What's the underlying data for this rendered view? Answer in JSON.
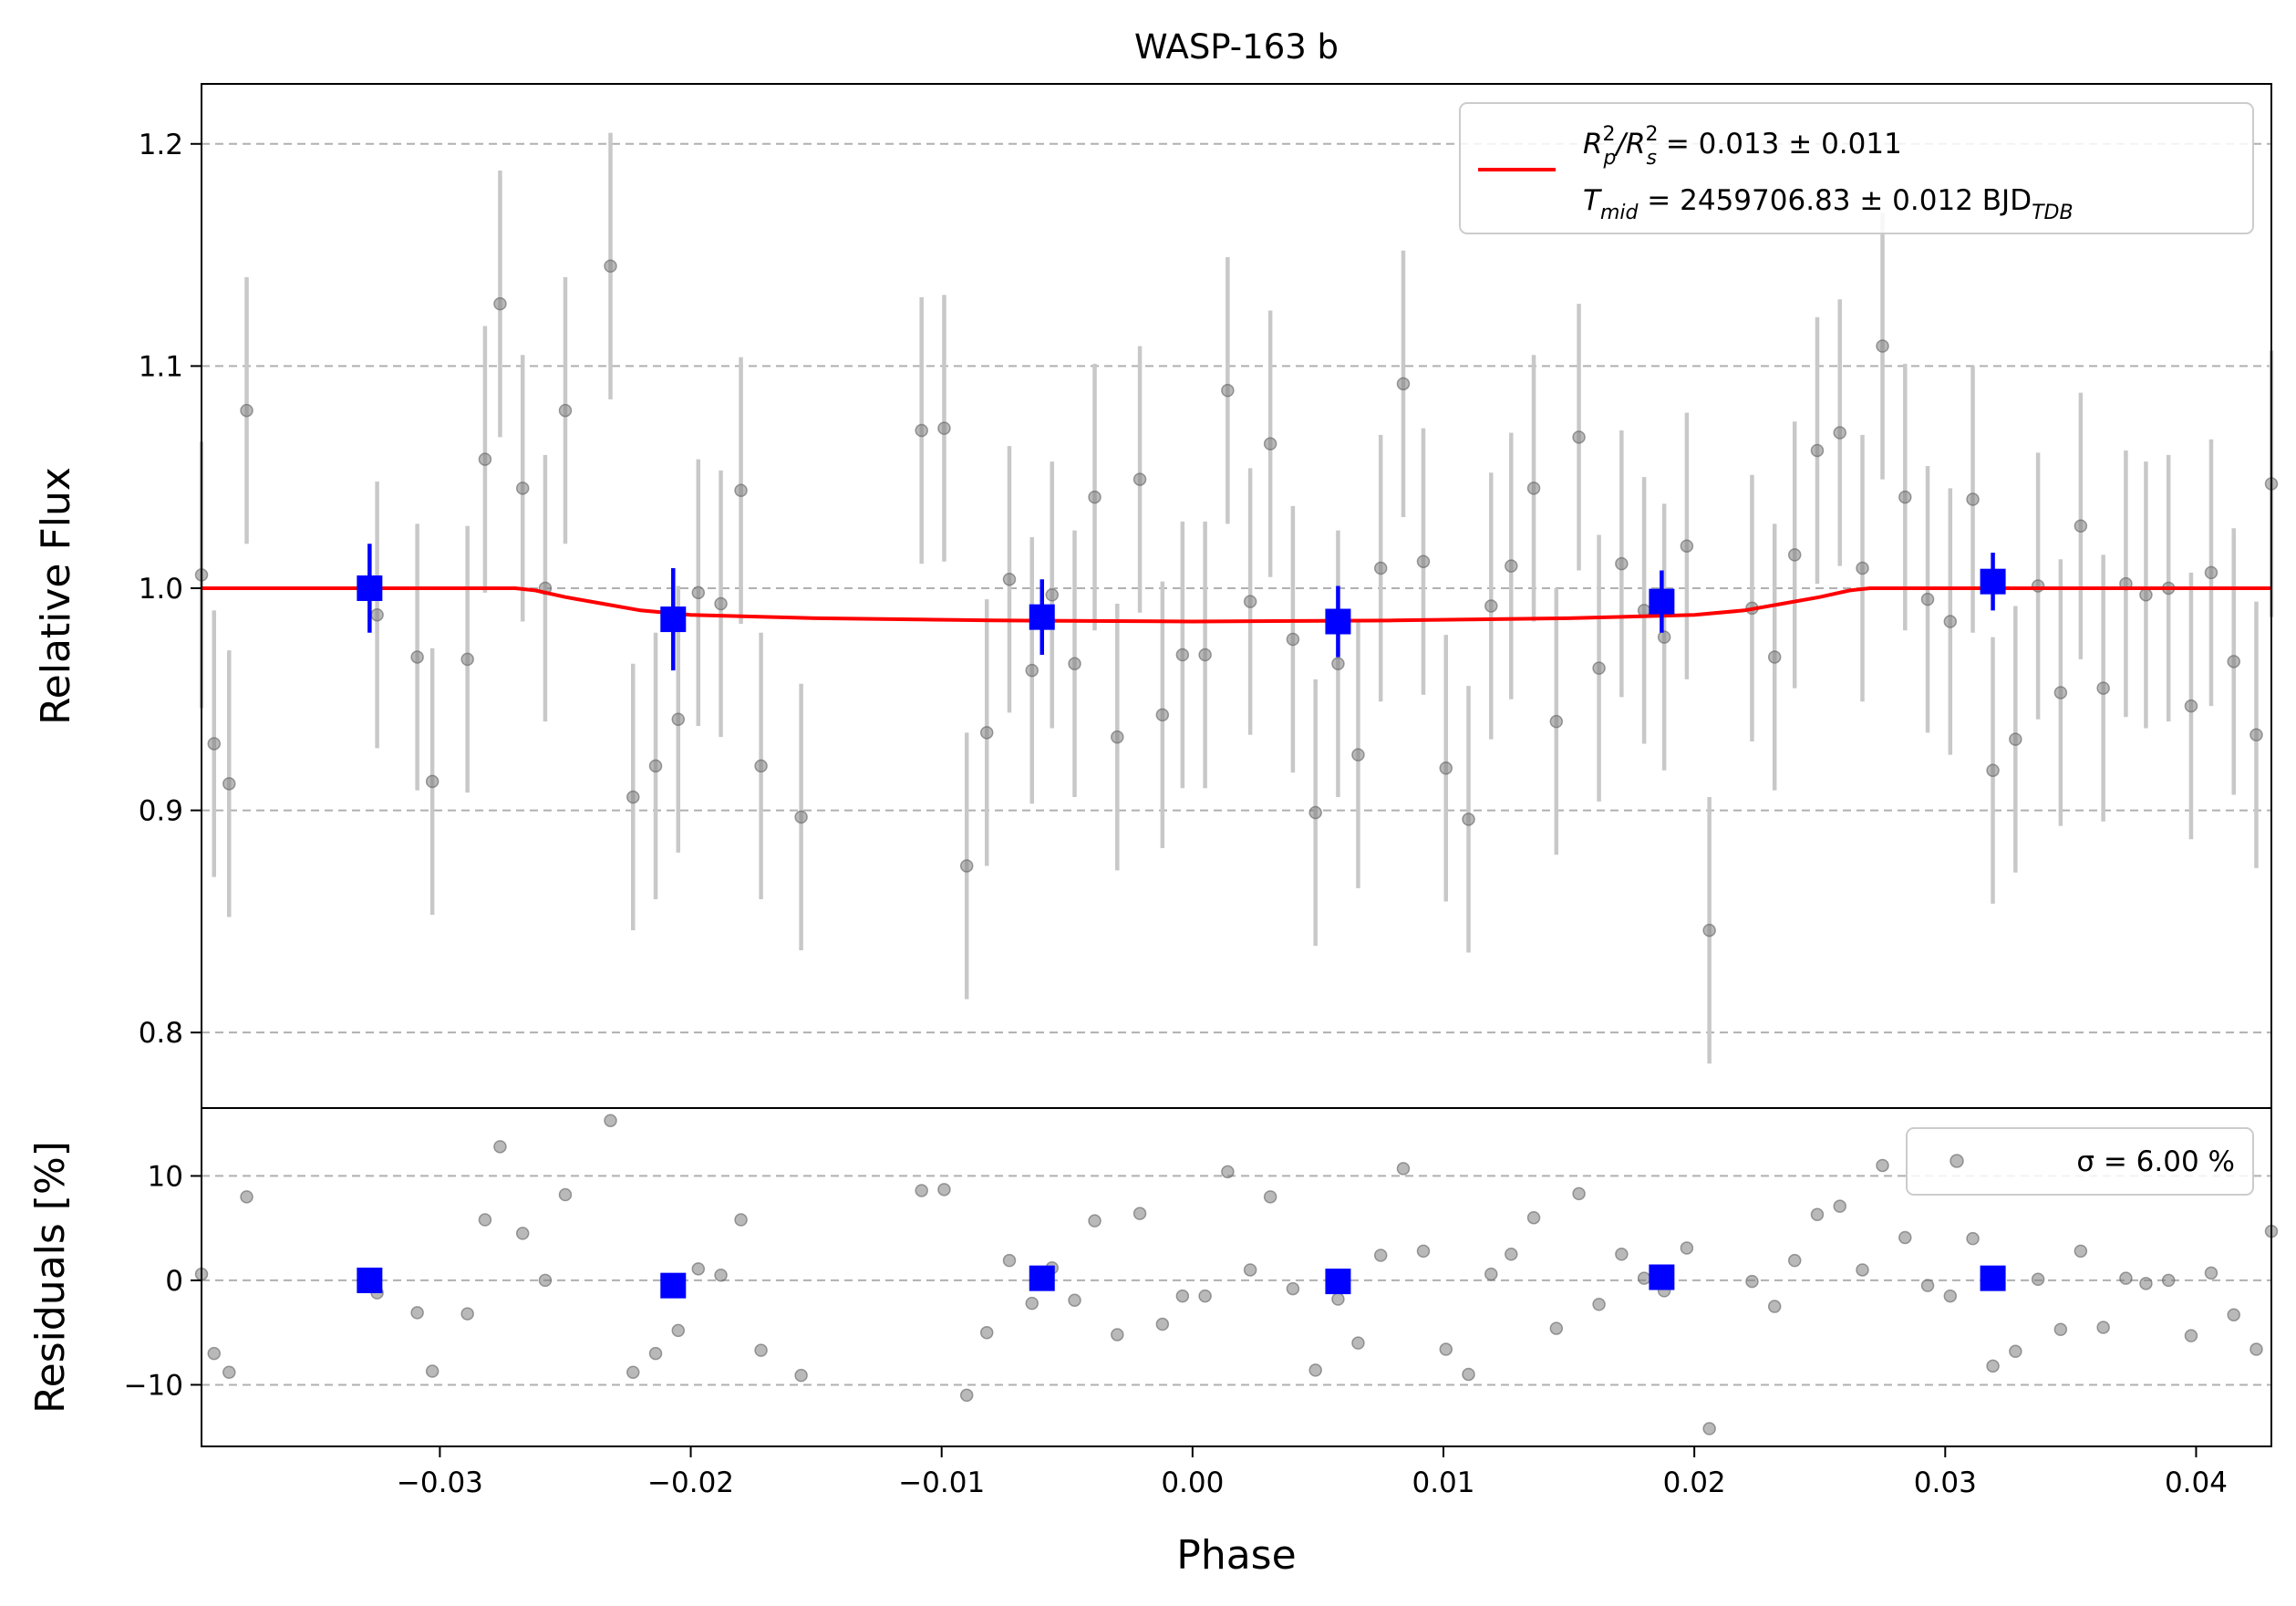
{
  "figure": {
    "title": "WASP-163 b"
  },
  "chart_data": [
    {
      "type": "scatter",
      "panel": "light-curve",
      "title": "WASP-163 b",
      "xlabel": "",
      "ylabel": "Relative Flux",
      "xlim": [
        -0.0395,
        0.043
      ],
      "ylim": [
        0.766,
        1.227
      ],
      "yticks": [
        0.8,
        0.9,
        1.0,
        1.1,
        1.2
      ],
      "ytick_labels": [
        "0.8",
        "0.9",
        "1.0",
        "1.1",
        "1.2"
      ],
      "grid": "horizontal dashed",
      "legend": {
        "placement": "top-right",
        "line1": {
          "pre": "R",
          "sup1": "2",
          "sub1": "p",
          "mid": "/R",
          "sup2": "2",
          "sub2": "s",
          "post": " = 0.013 ± 0.011"
        },
        "line2": {
          "pre": "T",
          "sub1": "mid",
          "mid": " = 2459706.83 ± 0.012 BJD",
          "sub2": "TDB"
        }
      },
      "colors": {
        "data": "#808080",
        "errorbar": "#c8c8c8",
        "binned": "#0000ff",
        "model": "#ff0000",
        "grid": "#b0b0b0"
      },
      "series": [
        {
          "kind": "raw",
          "points": [
            [
              -0.0395,
              1.006,
              0.06
            ],
            [
              -0.039,
              0.93,
              0.06
            ],
            [
              -0.0384,
              0.912,
              0.06
            ],
            [
              -0.0377,
              1.08,
              0.06
            ],
            [
              -0.0325,
              0.988,
              0.06
            ],
            [
              -0.0309,
              0.969,
              0.06
            ],
            [
              -0.0303,
              0.913,
              0.06
            ],
            [
              -0.0289,
              0.968,
              0.06
            ],
            [
              -0.0282,
              1.058,
              0.06
            ],
            [
              -0.0276,
              1.128,
              0.06
            ],
            [
              -0.0267,
              1.045,
              0.06
            ],
            [
              -0.0258,
              1.0,
              0.06
            ],
            [
              -0.025,
              1.08,
              0.06
            ],
            [
              -0.0232,
              1.145,
              0.06
            ],
            [
              -0.0223,
              0.906,
              0.06
            ],
            [
              -0.0214,
              0.92,
              0.06
            ],
            [
              -0.0205,
              0.941,
              0.06
            ],
            [
              -0.0197,
              0.998,
              0.06
            ],
            [
              -0.0188,
              0.993,
              0.06
            ],
            [
              -0.018,
              1.044,
              0.06
            ],
            [
              -0.0172,
              0.92,
              0.06
            ],
            [
              -0.0156,
              0.897,
              0.06
            ],
            [
              -0.0108,
              1.071,
              0.06
            ],
            [
              -0.0099,
              1.072,
              0.06
            ],
            [
              -0.009,
              0.875,
              0.06
            ],
            [
              -0.0082,
              0.935,
              0.06
            ],
            [
              -0.0073,
              1.004,
              0.06
            ],
            [
              -0.0064,
              0.963,
              0.06
            ],
            [
              -0.0056,
              0.997,
              0.06
            ],
            [
              -0.0047,
              0.966,
              0.06
            ],
            [
              -0.0039,
              1.041,
              0.06
            ],
            [
              -0.003,
              0.933,
              0.06
            ],
            [
              -0.0021,
              1.049,
              0.06
            ],
            [
              -0.0012,
              0.943,
              0.06
            ],
            [
              -0.0004,
              0.97,
              0.06
            ],
            [
              0.0005,
              0.97,
              0.06
            ],
            [
              0.0014,
              1.089,
              0.06
            ],
            [
              0.0023,
              0.994,
              0.06
            ],
            [
              0.0031,
              1.065,
              0.06
            ],
            [
              0.004,
              0.977,
              0.06
            ],
            [
              0.0049,
              0.899,
              0.06
            ],
            [
              0.0058,
              0.966,
              0.06
            ],
            [
              0.0066,
              0.925,
              0.06
            ],
            [
              0.0075,
              1.009,
              0.06
            ],
            [
              0.0084,
              1.092,
              0.06
            ],
            [
              0.0092,
              1.012,
              0.06
            ],
            [
              0.0101,
              0.919,
              0.06
            ],
            [
              0.011,
              0.896,
              0.06
            ],
            [
              0.0119,
              0.992,
              0.06
            ],
            [
              0.0127,
              1.01,
              0.06
            ],
            [
              0.0136,
              1.045,
              0.06
            ],
            [
              0.0145,
              0.94,
              0.06
            ],
            [
              0.0154,
              1.068,
              0.06
            ],
            [
              0.0162,
              0.964,
              0.06
            ],
            [
              0.0171,
              1.011,
              0.06
            ],
            [
              0.018,
              0.99,
              0.06
            ],
            [
              0.0188,
              0.978,
              0.06
            ],
            [
              0.0197,
              1.019,
              0.06
            ],
            [
              0.0206,
              0.846,
              0.06
            ],
            [
              0.0223,
              0.991,
              0.06
            ],
            [
              0.0232,
              0.969,
              0.06
            ],
            [
              0.024,
              1.015,
              0.06
            ],
            [
              0.0249,
              1.062,
              0.06
            ],
            [
              0.0258,
              1.07,
              0.06
            ],
            [
              0.0267,
              1.009,
              0.06
            ],
            [
              0.0275,
              1.109,
              0.06
            ],
            [
              0.0284,
              1.041,
              0.06
            ],
            [
              0.0293,
              0.995,
              0.06
            ],
            [
              0.0302,
              0.985,
              0.06
            ],
            [
              0.0311,
              1.04,
              0.06
            ],
            [
              0.0319,
              0.918,
              0.06
            ],
            [
              0.0328,
              0.932,
              0.06
            ],
            [
              0.0337,
              1.001,
              0.06
            ],
            [
              0.0346,
              0.953,
              0.06
            ],
            [
              0.0354,
              1.028,
              0.06
            ],
            [
              0.0363,
              0.955,
              0.06
            ],
            [
              0.0372,
              1.002,
              0.06
            ],
            [
              0.038,
              0.997,
              0.06
            ],
            [
              0.0389,
              1.0,
              0.06
            ],
            [
              0.0398,
              0.947,
              0.06
            ],
            [
              0.0406,
              1.007,
              0.06
            ],
            [
              0.0415,
              0.967,
              0.06
            ],
            [
              0.0424,
              0.934,
              0.06
            ],
            [
              0.043,
              1.047,
              0.06
            ]
          ]
        },
        {
          "kind": "binned",
          "points": [
            [
              -0.0328,
              1.0,
              0.02
            ],
            [
              -0.0207,
              0.986,
              0.023
            ],
            [
              -0.006,
              0.987,
              0.017
            ],
            [
              0.0058,
              0.985,
              0.016
            ],
            [
              0.0187,
              0.994,
              0.014
            ],
            [
              0.0319,
              1.003,
              0.013
            ]
          ]
        },
        {
          "kind": "model",
          "points": [
            [
              -0.0395,
              1.0
            ],
            [
              -0.027,
              1.0
            ],
            [
              -0.0262,
              0.999
            ],
            [
              -0.025,
              0.996
            ],
            [
              -0.0235,
              0.993
            ],
            [
              -0.022,
              0.99
            ],
            [
              -0.02,
              0.988
            ],
            [
              -0.015,
              0.9865
            ],
            [
              -0.008,
              0.9855
            ],
            [
              0.0,
              0.985
            ],
            [
              0.008,
              0.9855
            ],
            [
              0.015,
              0.9865
            ],
            [
              0.02,
              0.988
            ],
            [
              0.022,
              0.99
            ],
            [
              0.0235,
              0.993
            ],
            [
              0.025,
              0.996
            ],
            [
              0.0262,
              0.999
            ],
            [
              0.027,
              1.0
            ],
            [
              0.043,
              1.0
            ]
          ]
        }
      ]
    },
    {
      "type": "scatter",
      "panel": "residuals",
      "xlabel": "Phase",
      "ylabel": "Residuals [%]",
      "xlim": [
        -0.0395,
        0.043
      ],
      "ylim": [
        -15.9,
        16.5
      ],
      "xticks": [
        -0.03,
        -0.02,
        -0.01,
        0.0,
        0.01,
        0.02,
        0.03,
        0.04
      ],
      "xtick_labels": [
        "−0.03",
        "−0.02",
        "−0.01",
        "0.00",
        "0.01",
        "0.02",
        "0.03",
        "0.04"
      ],
      "yticks": [
        -10,
        0,
        10
      ],
      "ytick_labels": [
        "−10",
        "0",
        "10"
      ],
      "grid": "horizontal dashed",
      "legend": {
        "placement": "top-right",
        "label": "σ = 6.00 %"
      },
      "series": [
        {
          "kind": "raw",
          "points": [
            [
              -0.0395,
              0.6
            ],
            [
              -0.039,
              -7.0
            ],
            [
              -0.0384,
              -8.8
            ],
            [
              -0.0377,
              8.0
            ],
            [
              -0.0325,
              -1.2
            ],
            [
              -0.0309,
              -3.1
            ],
            [
              -0.0303,
              -8.7
            ],
            [
              -0.0289,
              -3.2
            ],
            [
              -0.0282,
              5.8
            ],
            [
              -0.0276,
              12.8
            ],
            [
              -0.0267,
              4.5
            ],
            [
              -0.0258,
              0.0
            ],
            [
              -0.025,
              8.2
            ],
            [
              -0.0232,
              15.3
            ],
            [
              -0.0223,
              -8.8
            ],
            [
              -0.0214,
              -7.0
            ],
            [
              -0.0205,
              -4.8
            ],
            [
              -0.0197,
              1.1
            ],
            [
              -0.0188,
              0.5
            ],
            [
              -0.018,
              5.8
            ],
            [
              -0.0172,
              -6.7
            ],
            [
              -0.0156,
              -9.1
            ],
            [
              -0.0108,
              8.6
            ],
            [
              -0.0099,
              8.7
            ],
            [
              -0.009,
              -11.0
            ],
            [
              -0.0082,
              -5.0
            ],
            [
              -0.0073,
              1.9
            ],
            [
              -0.0064,
              -2.2
            ],
            [
              -0.0056,
              1.2
            ],
            [
              -0.0047,
              -1.9
            ],
            [
              -0.0039,
              5.7
            ],
            [
              -0.003,
              -5.2
            ],
            [
              -0.0021,
              6.4
            ],
            [
              -0.0012,
              -4.2
            ],
            [
              -0.0004,
              -1.5
            ],
            [
              0.0005,
              -1.5
            ],
            [
              0.0014,
              10.4
            ],
            [
              0.0023,
              1.0
            ],
            [
              0.0031,
              8.0
            ],
            [
              0.004,
              -0.8
            ],
            [
              0.0049,
              -8.6
            ],
            [
              0.0058,
              -1.8
            ],
            [
              0.0066,
              -6.0
            ],
            [
              0.0075,
              2.4
            ],
            [
              0.0084,
              10.7
            ],
            [
              0.0092,
              2.8
            ],
            [
              0.0101,
              -6.6
            ],
            [
              0.011,
              -9.0
            ],
            [
              0.0119,
              0.6
            ],
            [
              0.0127,
              2.5
            ],
            [
              0.0136,
              6.0
            ],
            [
              0.0145,
              -4.6
            ],
            [
              0.0154,
              8.3
            ],
            [
              0.0162,
              -2.3
            ],
            [
              0.0171,
              2.5
            ],
            [
              0.018,
              0.2
            ],
            [
              0.0188,
              -1.0
            ],
            [
              0.0197,
              3.1
            ],
            [
              0.0206,
              -14.2
            ],
            [
              0.0223,
              -0.1
            ],
            [
              0.0232,
              -2.5
            ],
            [
              0.024,
              1.9
            ],
            [
              0.0249,
              6.3
            ],
            [
              0.0258,
              7.1
            ],
            [
              0.0267,
              1.0
            ],
            [
              0.0275,
              11.0
            ],
            [
              0.0284,
              4.1
            ],
            [
              0.0293,
              -0.5
            ],
            [
              0.0302,
              -1.5
            ],
            [
              0.0311,
              4.0
            ],
            [
              0.0319,
              -8.2
            ],
            [
              0.0328,
              -6.8
            ],
            [
              0.0337,
              0.1
            ],
            [
              0.0346,
              -4.7
            ],
            [
              0.0354,
              2.8
            ],
            [
              0.0363,
              -4.5
            ],
            [
              0.0372,
              0.2
            ],
            [
              0.038,
              -0.3
            ],
            [
              0.0389,
              0.0
            ],
            [
              0.0398,
              -5.3
            ],
            [
              0.0406,
              0.7
            ],
            [
              0.0415,
              -3.3
            ],
            [
              0.0424,
              -6.6
            ],
            [
              0.043,
              4.7
            ]
          ]
        },
        {
          "kind": "binned",
          "points": [
            [
              -0.0328,
              0.0
            ],
            [
              -0.0207,
              -0.5
            ],
            [
              -0.006,
              0.2
            ],
            [
              0.0058,
              -0.1
            ],
            [
              0.0187,
              0.3
            ],
            [
              0.0319,
              0.2
            ]
          ]
        }
      ]
    }
  ]
}
